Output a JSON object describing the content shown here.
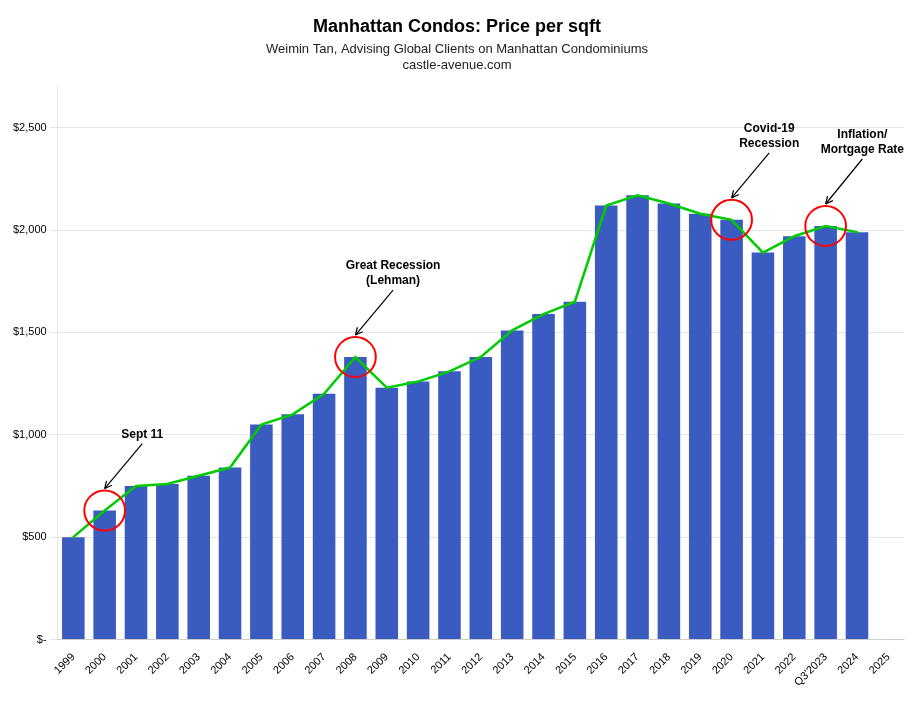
{
  "chart_data": {
    "type": "bar",
    "title": "Manhattan Condos: Price per sqft",
    "subtitle": [
      "Weimin Tan, Advising Global Clients on Manhattan Condominiums",
      "castle-avenue.com"
    ],
    "categories": [
      "1999",
      "2000",
      "2001",
      "2002",
      "2003",
      "2004",
      "2005",
      "2006",
      "2007",
      "2008",
      "2009",
      "2010",
      "2011",
      "2012",
      "2013",
      "2014",
      "2015",
      "2016",
      "2017",
      "2018",
      "2019",
      "2020",
      "2021",
      "2022",
      "Q3'2023",
      "2024",
      "2025"
    ],
    "series": [
      {
        "type": "bar",
        "color": "#3a5bbf",
        "values": [
          500,
          630,
          750,
          760,
          800,
          840,
          1050,
          1100,
          1200,
          1380,
          1230,
          1260,
          1310,
          1380,
          1510,
          1590,
          1650,
          2120,
          2170,
          2130,
          2080,
          2050,
          1890,
          1970,
          2020,
          1990,
          0
        ]
      },
      {
        "type": "line",
        "color": "#00cc00",
        "values": [
          500,
          630,
          750,
          760,
          800,
          840,
          1050,
          1100,
          1200,
          1380,
          1230,
          1260,
          1310,
          1380,
          1510,
          1590,
          1650,
          2120,
          2170,
          2130,
          2080,
          2050,
          1890,
          1970,
          2020,
          1990,
          null
        ]
      }
    ],
    "ylim": [
      0,
      2700
    ],
    "yticks": [
      {
        "value": 0,
        "label": "$-"
      },
      {
        "value": 500,
        "label": "$500"
      },
      {
        "value": 1000,
        "label": "$1,000"
      },
      {
        "value": 1500,
        "label": "$1,500"
      },
      {
        "value": 2000,
        "label": "$2,000"
      },
      {
        "value": 2500,
        "label": "$2,500"
      }
    ],
    "grid": true,
    "annotations": [
      {
        "text": "Sept 11",
        "category": "2000"
      },
      {
        "text": "Great Recession\n(Lehman)",
        "category": "2008"
      },
      {
        "text": "Covid-19\nRecession",
        "category": "2020"
      },
      {
        "text": "Inflation/\nMortgage Rate",
        "category": "Q3'2023"
      }
    ]
  }
}
